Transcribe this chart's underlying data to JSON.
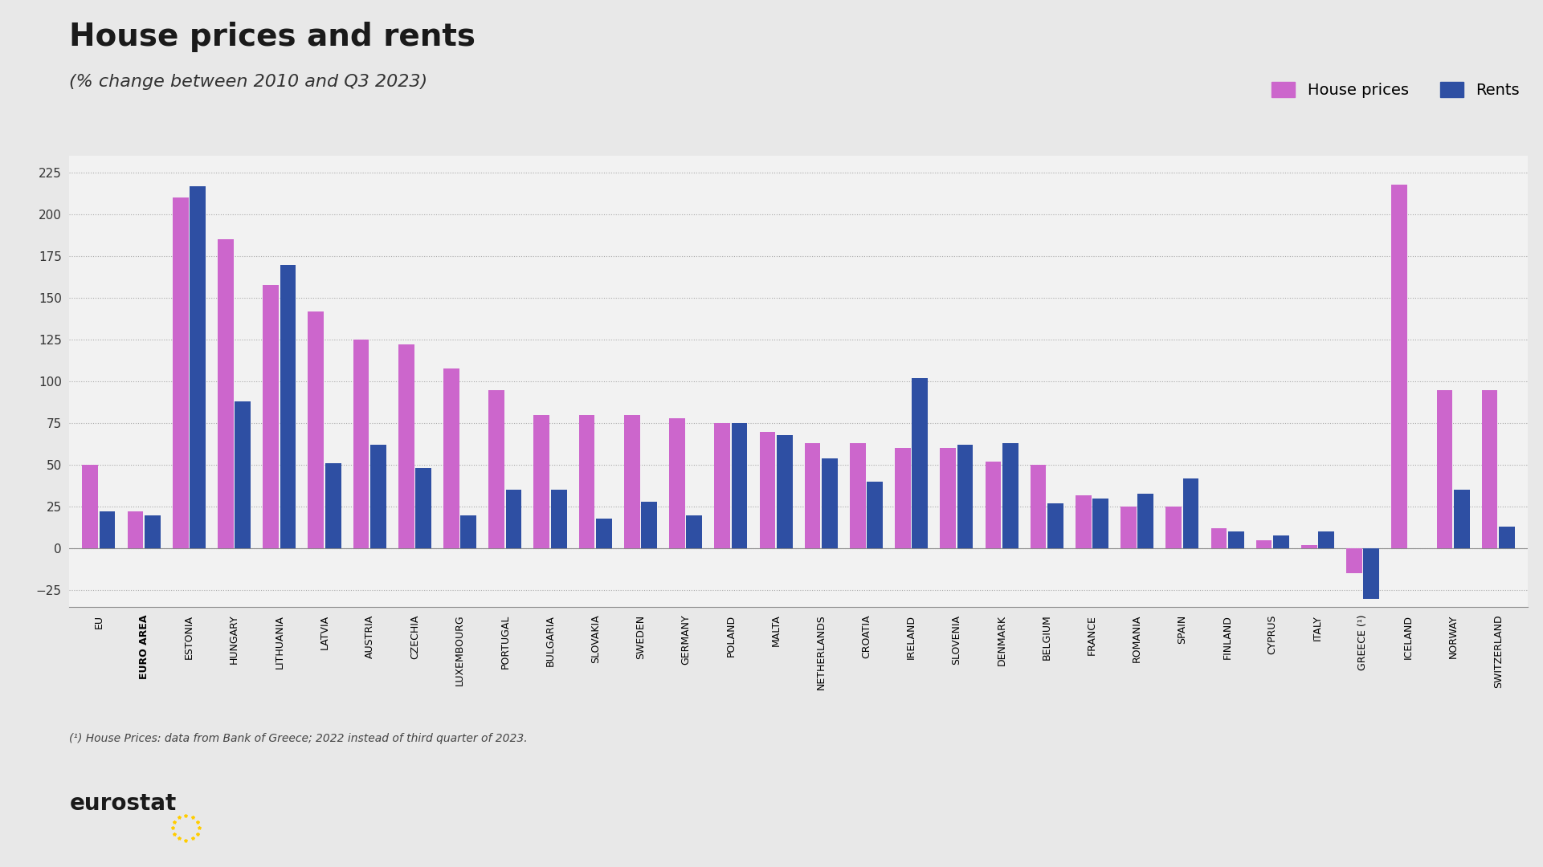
{
  "title": "House prices and rents",
  "subtitle": "(% change between 2010 and Q3 2023)",
  "legend_labels": [
    "House prices",
    "Rents"
  ],
  "house_price_color": "#cc66cc",
  "rent_color": "#2e4fa3",
  "background_color": "#e8e8e8",
  "plot_background_color": "#f2f2f2",
  "categories": [
    "EU",
    "EURO AREA",
    "ESTONIA",
    "HUNGARY",
    "LITHUANIA",
    "LATVIA",
    "AUSTRIA",
    "CZECHIA",
    "LUXEMBOURG",
    "PORTUGAL",
    "BULGARIA",
    "SLOVAKIA",
    "SWEDEN",
    "GERMANY",
    "POLAND",
    "MALTA",
    "NETHERLANDS",
    "CROATIA",
    "IRELAND",
    "SLOVENIA",
    "DENMARK",
    "BELGIUM",
    "FRANCE",
    "ROMANIA",
    "SPAIN",
    "FINLAND",
    "CYPRUS",
    "ITALY",
    "GREECE (¹)",
    "ICELAND",
    "NORWAY",
    "SWITZERLAND"
  ],
  "house_prices": [
    50,
    22,
    210,
    185,
    158,
    142,
    125,
    122,
    108,
    95,
    80,
    80,
    80,
    78,
    75,
    70,
    63,
    63,
    60,
    60,
    52,
    50,
    32,
    25,
    25,
    12,
    5,
    2,
    -15,
    218,
    95,
    95
  ],
  "rents": [
    22,
    20,
    217,
    88,
    170,
    51,
    62,
    48,
    20,
    35,
    35,
    18,
    28,
    20,
    75,
    68,
    54,
    40,
    102,
    62,
    63,
    27,
    30,
    33,
    42,
    10,
    8,
    10,
    -30,
    null,
    35,
    13
  ],
  "ylim": [
    -35,
    235
  ],
  "yticks": [
    -25,
    0,
    25,
    50,
    75,
    100,
    125,
    150,
    175,
    200,
    225
  ],
  "footnote": "(¹) House Prices: data from Bank of Greece; 2022 instead of third quarter of 2023."
}
